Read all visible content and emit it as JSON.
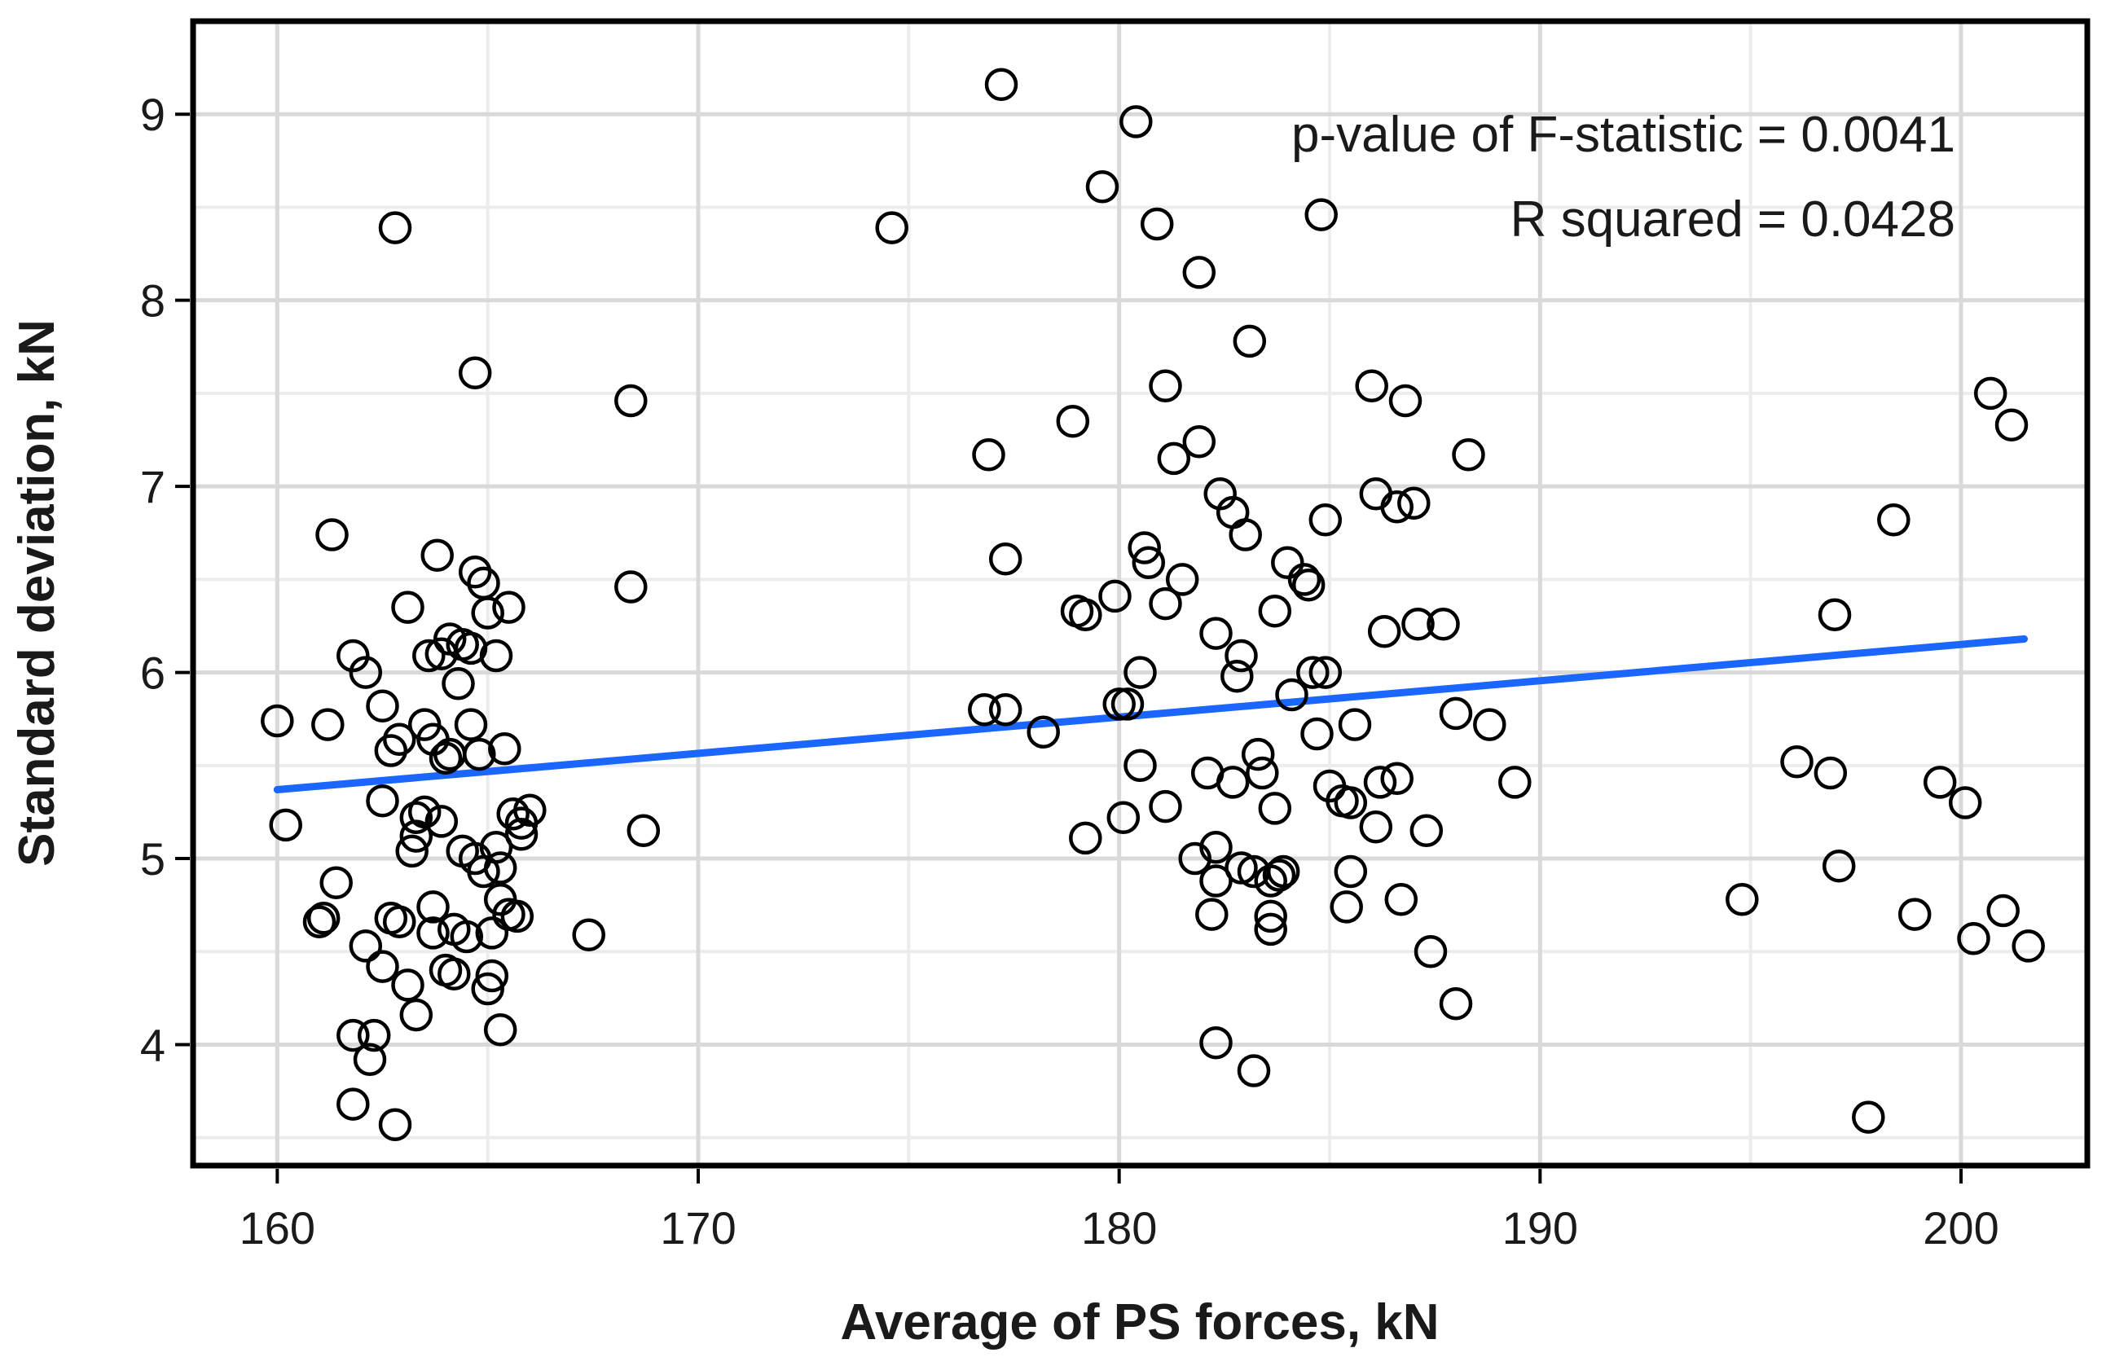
{
  "chart_data": {
    "type": "scatter",
    "title": "",
    "xlabel": "Average of PS forces, kN",
    "ylabel": "Standard deviation, kN",
    "xlim": [
      158,
      203
    ],
    "ylim": [
      3.35,
      9.5
    ],
    "x_ticks": [
      160,
      170,
      180,
      190,
      200
    ],
    "y_ticks": [
      4,
      5,
      6,
      7,
      8,
      9
    ],
    "grid": true,
    "annotations": {
      "p_value": "p-value of F-statistic = 0.0041",
      "r_squared": "R squared = 0.0428"
    },
    "trend_line": {
      "name": "linear fit",
      "color": "#1a66ff",
      "x": [
        160,
        201.5
      ],
      "y": [
        5.37,
        6.18
      ]
    },
    "points": [
      [
        160.0,
        5.74
      ],
      [
        160.2,
        5.18
      ],
      [
        161.0,
        4.66
      ],
      [
        161.1,
        4.68
      ],
      [
        161.2,
        5.72
      ],
      [
        161.3,
        6.74
      ],
      [
        161.4,
        4.87
      ],
      [
        161.8,
        6.09
      ],
      [
        161.8,
        4.05
      ],
      [
        161.8,
        3.68
      ],
      [
        162.1,
        4.53
      ],
      [
        162.1,
        6.0
      ],
      [
        162.2,
        3.92
      ],
      [
        162.3,
        4.05
      ],
      [
        162.5,
        5.82
      ],
      [
        162.5,
        4.42
      ],
      [
        162.5,
        5.31
      ],
      [
        162.7,
        4.68
      ],
      [
        162.7,
        5.58
      ],
      [
        162.8,
        8.39
      ],
      [
        162.8,
        3.57
      ],
      [
        162.9,
        5.64
      ],
      [
        162.9,
        4.66
      ],
      [
        163.1,
        6.35
      ],
      [
        163.1,
        4.32
      ],
      [
        163.2,
        5.04
      ],
      [
        163.3,
        5.12
      ],
      [
        163.3,
        5.22
      ],
      [
        163.5,
        5.72
      ],
      [
        163.5,
        5.25
      ],
      [
        163.3,
        4.16
      ],
      [
        163.6,
        6.09
      ],
      [
        163.7,
        4.74
      ],
      [
        163.7,
        4.6
      ],
      [
        163.7,
        5.64
      ],
      [
        163.8,
        6.63
      ],
      [
        163.9,
        5.2
      ],
      [
        163.9,
        6.1
      ],
      [
        164.0,
        4.4
      ],
      [
        164.0,
        5.54
      ],
      [
        164.1,
        6.18
      ],
      [
        164.1,
        5.56
      ],
      [
        164.2,
        4.38
      ],
      [
        164.2,
        4.62
      ],
      [
        164.3,
        5.94
      ],
      [
        164.4,
        5.04
      ],
      [
        164.4,
        6.15
      ],
      [
        164.5,
        4.58
      ],
      [
        164.6,
        6.13
      ],
      [
        164.6,
        5.72
      ],
      [
        164.7,
        5.0
      ],
      [
        164.7,
        6.54
      ],
      [
        164.7,
        7.61
      ],
      [
        164.8,
        5.56
      ],
      [
        164.9,
        4.93
      ],
      [
        164.9,
        6.48
      ],
      [
        165.0,
        6.32
      ],
      [
        165.0,
        4.3
      ],
      [
        165.1,
        4.37
      ],
      [
        165.1,
        4.6
      ],
      [
        165.2,
        6.09
      ],
      [
        165.2,
        5.06
      ],
      [
        165.3,
        4.95
      ],
      [
        165.3,
        4.08
      ],
      [
        165.3,
        4.78
      ],
      [
        165.4,
        5.59
      ],
      [
        165.5,
        6.35
      ],
      [
        165.5,
        4.7
      ],
      [
        165.6,
        5.24
      ],
      [
        165.7,
        4.69
      ],
      [
        165.8,
        5.19
      ],
      [
        165.8,
        5.13
      ],
      [
        166.0,
        5.26
      ],
      [
        167.4,
        4.59
      ],
      [
        168.4,
        7.46
      ],
      [
        168.4,
        6.46
      ],
      [
        168.7,
        5.15
      ],
      [
        174.6,
        8.39
      ],
      [
        176.8,
        5.8
      ],
      [
        176.9,
        7.17
      ],
      [
        177.2,
        9.16
      ],
      [
        177.3,
        5.8
      ],
      [
        177.3,
        6.61
      ],
      [
        178.2,
        5.68
      ],
      [
        178.9,
        7.35
      ],
      [
        179.0,
        6.33
      ],
      [
        179.2,
        6.31
      ],
      [
        179.2,
        5.11
      ],
      [
        179.6,
        8.61
      ],
      [
        179.9,
        6.41
      ],
      [
        180.0,
        5.83
      ],
      [
        180.1,
        5.22
      ],
      [
        180.2,
        5.83
      ],
      [
        180.4,
        8.96
      ],
      [
        180.5,
        6.0
      ],
      [
        180.5,
        5.5
      ],
      [
        180.6,
        6.67
      ],
      [
        180.7,
        6.59
      ],
      [
        180.9,
        8.41
      ],
      [
        181.1,
        6.37
      ],
      [
        181.1,
        5.28
      ],
      [
        181.1,
        7.54
      ],
      [
        181.3,
        7.15
      ],
      [
        181.5,
        6.5
      ],
      [
        181.8,
        5.0
      ],
      [
        181.9,
        7.24
      ],
      [
        181.9,
        8.15
      ],
      [
        182.1,
        5.46
      ],
      [
        182.2,
        4.7
      ],
      [
        182.3,
        5.06
      ],
      [
        182.3,
        4.88
      ],
      [
        182.3,
        6.21
      ],
      [
        182.3,
        4.01
      ],
      [
        182.4,
        6.96
      ],
      [
        182.7,
        6.86
      ],
      [
        182.7,
        5.41
      ],
      [
        182.8,
        5.98
      ],
      [
        182.9,
        6.09
      ],
      [
        182.9,
        4.95
      ],
      [
        183.0,
        6.74
      ],
      [
        183.1,
        7.78
      ],
      [
        183.2,
        4.93
      ],
      [
        183.2,
        3.86
      ],
      [
        183.3,
        5.56
      ],
      [
        183.4,
        5.46
      ],
      [
        183.6,
        4.88
      ],
      [
        183.6,
        4.62
      ],
      [
        183.6,
        4.69
      ],
      [
        183.7,
        5.27
      ],
      [
        183.7,
        6.33
      ],
      [
        183.8,
        4.91
      ],
      [
        183.9,
        4.93
      ],
      [
        184.0,
        6.59
      ],
      [
        184.1,
        5.88
      ],
      [
        184.4,
        6.5
      ],
      [
        184.5,
        6.47
      ],
      [
        184.6,
        6.0
      ],
      [
        184.7,
        5.67
      ],
      [
        184.8,
        8.46
      ],
      [
        184.9,
        6.82
      ],
      [
        184.9,
        6.0
      ],
      [
        185.0,
        5.39
      ],
      [
        185.3,
        5.31
      ],
      [
        185.4,
        4.74
      ],
      [
        185.5,
        5.3
      ],
      [
        185.5,
        4.93
      ],
      [
        185.6,
        5.72
      ],
      [
        186.0,
        7.54
      ],
      [
        186.1,
        6.96
      ],
      [
        186.1,
        5.17
      ],
      [
        186.2,
        5.41
      ],
      [
        186.3,
        6.22
      ],
      [
        186.6,
        5.43
      ],
      [
        186.6,
        6.89
      ],
      [
        186.7,
        4.78
      ],
      [
        186.8,
        7.46
      ],
      [
        187.0,
        6.91
      ],
      [
        187.1,
        6.26
      ],
      [
        187.3,
        5.15
      ],
      [
        187.4,
        4.5
      ],
      [
        187.7,
        6.26
      ],
      [
        188.0,
        5.78
      ],
      [
        188.0,
        4.22
      ],
      [
        188.3,
        7.17
      ],
      [
        188.8,
        5.72
      ],
      [
        189.4,
        5.41
      ],
      [
        194.8,
        4.78
      ],
      [
        196.1,
        5.52
      ],
      [
        196.9,
        5.46
      ],
      [
        197.0,
        6.31
      ],
      [
        197.1,
        4.96
      ],
      [
        197.8,
        3.61
      ],
      [
        198.4,
        6.82
      ],
      [
        198.9,
        4.7
      ],
      [
        199.5,
        5.41
      ],
      [
        200.1,
        5.3
      ],
      [
        200.3,
        4.57
      ],
      [
        200.7,
        7.5
      ],
      [
        201.0,
        4.72
      ],
      [
        201.2,
        7.33
      ],
      [
        201.6,
        4.53
      ]
    ]
  }
}
